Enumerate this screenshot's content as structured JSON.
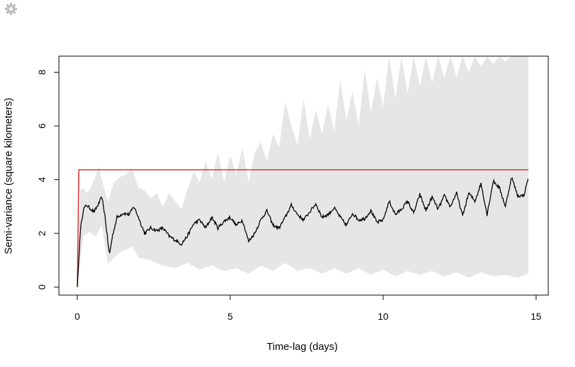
{
  "toolbar": {
    "settings_icon": "gear-icon"
  },
  "chart_data": {
    "type": "line",
    "title": "",
    "xlabel": "Time-lag (days)",
    "ylabel": "Semi-variance (square kilometers)",
    "xlim": [
      -0.6,
      15.4
    ],
    "ylim": [
      -0.3,
      8.6
    ],
    "xticks": [
      0,
      5,
      10,
      15
    ],
    "yticks": [
      0,
      2,
      4,
      6,
      8
    ],
    "grid": false,
    "legend": "none",
    "colors": {
      "empirical": "#000000",
      "model": "#e0191e",
      "ci_band": "#e6e6e6",
      "frame": "#000000"
    },
    "series": [
      {
        "role": "model",
        "x": [
          0,
          0.03,
          0.05,
          14.75
        ],
        "y": [
          0,
          2.5,
          4.37,
          4.37
        ]
      },
      {
        "role": "empirical",
        "x": [
          0,
          0.1,
          0.2,
          0.3,
          0.4,
          0.55,
          0.7,
          0.8,
          0.9,
          1.0,
          1.05,
          1.15,
          1.3,
          1.5,
          1.7,
          1.85,
          2.0,
          2.2,
          2.4,
          2.6,
          2.8,
          3.0,
          3.2,
          3.4,
          3.6,
          3.8,
          4.0,
          4.2,
          4.4,
          4.6,
          4.8,
          5.0,
          5.2,
          5.4,
          5.6,
          5.8,
          6.0,
          6.2,
          6.4,
          6.6,
          6.8,
          7.0,
          7.2,
          7.4,
          7.6,
          7.8,
          8.0,
          8.2,
          8.4,
          8.6,
          8.8,
          9.0,
          9.2,
          9.4,
          9.6,
          9.8,
          10.0,
          10.2,
          10.4,
          10.6,
          10.8,
          11.0,
          11.2,
          11.4,
          11.6,
          11.8,
          12.0,
          12.2,
          12.4,
          12.6,
          12.8,
          13.0,
          13.2,
          13.4,
          13.6,
          13.8,
          14.0,
          14.2,
          14.4,
          14.6,
          14.75
        ],
        "y": [
          0,
          2.1,
          2.9,
          3.05,
          2.95,
          2.8,
          3.1,
          3.35,
          2.7,
          1.7,
          1.2,
          1.9,
          2.6,
          2.75,
          2.7,
          3.0,
          2.6,
          2.0,
          2.2,
          2.1,
          2.2,
          1.9,
          1.75,
          1.6,
          1.9,
          2.35,
          2.5,
          2.2,
          2.6,
          2.2,
          2.45,
          2.6,
          2.3,
          2.5,
          1.7,
          2.0,
          2.5,
          2.85,
          2.3,
          2.2,
          2.6,
          3.05,
          2.7,
          2.5,
          2.8,
          3.1,
          2.6,
          2.7,
          2.95,
          2.6,
          2.3,
          2.75,
          2.5,
          2.55,
          2.85,
          2.4,
          2.5,
          3.2,
          2.7,
          2.9,
          3.2,
          2.75,
          3.45,
          2.85,
          3.35,
          2.9,
          3.4,
          3.0,
          3.5,
          2.65,
          3.5,
          3.2,
          3.85,
          2.7,
          3.95,
          3.7,
          3.0,
          4.1,
          3.4,
          3.4,
          4.1
        ]
      },
      {
        "role": "ci_upper",
        "x": [
          0,
          0.1,
          0.2,
          0.3,
          0.4,
          0.55,
          0.7,
          0.8,
          0.9,
          1.0,
          1.2,
          1.4,
          1.6,
          1.8,
          2.0,
          2.2,
          2.4,
          2.6,
          2.8,
          3.0,
          3.2,
          3.4,
          3.6,
          3.8,
          4.0,
          4.2,
          4.4,
          4.6,
          4.8,
          5.0,
          5.2,
          5.4,
          5.6,
          5.8,
          6.0,
          6.2,
          6.4,
          6.6,
          6.8,
          7.0,
          7.2,
          7.4,
          7.6,
          7.8,
          8.0,
          8.2,
          8.4,
          8.6,
          8.8,
          9.0,
          9.2,
          9.4,
          9.6,
          9.8,
          10.0,
          10.2,
          10.4,
          10.6,
          10.8,
          11.0,
          11.2,
          11.4,
          11.6,
          11.8,
          12.0,
          12.2,
          12.4,
          12.6,
          12.8,
          13.0,
          13.2,
          13.4,
          13.6,
          13.8,
          14.0,
          14.2,
          14.4,
          14.6,
          14.75
        ],
        "y": [
          0,
          3.6,
          3.7,
          3.5,
          3.6,
          4.0,
          4.5,
          4.0,
          3.6,
          3.2,
          3.9,
          4.1,
          4.2,
          4.4,
          3.7,
          3.6,
          3.3,
          3.5,
          3.0,
          3.5,
          3.2,
          2.9,
          3.6,
          4.3,
          3.9,
          4.7,
          4.0,
          5.0,
          3.9,
          4.9,
          4.2,
          5.2,
          3.9,
          5.0,
          5.4,
          4.7,
          5.7,
          5.2,
          6.9,
          6.0,
          5.3,
          7.0,
          5.5,
          6.6,
          5.7,
          6.8,
          5.8,
          7.7,
          6.2,
          7.3,
          6.0,
          8.1,
          6.5,
          7.8,
          6.7,
          8.6,
          7.0,
          8.6,
          7.2,
          8.6,
          7.5,
          8.6,
          7.6,
          8.6,
          7.8,
          8.6,
          7.8,
          8.6,
          8.0,
          8.6,
          8.2,
          8.6,
          8.3,
          8.6,
          8.4,
          8.6,
          8.6,
          8.6,
          8.6
        ]
      },
      {
        "role": "ci_lower",
        "x": [
          0,
          0.2,
          0.4,
          0.6,
          0.8,
          1.0,
          1.2,
          1.4,
          1.6,
          1.8,
          2.0,
          2.4,
          2.8,
          3.2,
          3.6,
          4.0,
          4.4,
          4.8,
          5.2,
          5.6,
          6.0,
          6.4,
          6.8,
          7.2,
          7.6,
          8.0,
          8.4,
          8.8,
          9.2,
          9.6,
          10.0,
          10.4,
          10.8,
          11.2,
          11.6,
          12.0,
          12.4,
          12.8,
          13.2,
          13.6,
          14.0,
          14.4,
          14.75
        ],
        "y": [
          0,
          1.9,
          2.05,
          1.9,
          2.3,
          0.85,
          1.1,
          1.3,
          1.4,
          1.5,
          1.1,
          1.0,
          0.8,
          0.7,
          0.9,
          0.65,
          0.8,
          0.6,
          0.7,
          0.5,
          0.8,
          0.6,
          0.9,
          0.6,
          0.7,
          0.5,
          0.7,
          0.5,
          0.7,
          0.45,
          0.65,
          0.4,
          0.6,
          0.45,
          0.6,
          0.4,
          0.55,
          0.35,
          0.55,
          0.4,
          0.45,
          0.35,
          0.5
        ]
      }
    ]
  }
}
